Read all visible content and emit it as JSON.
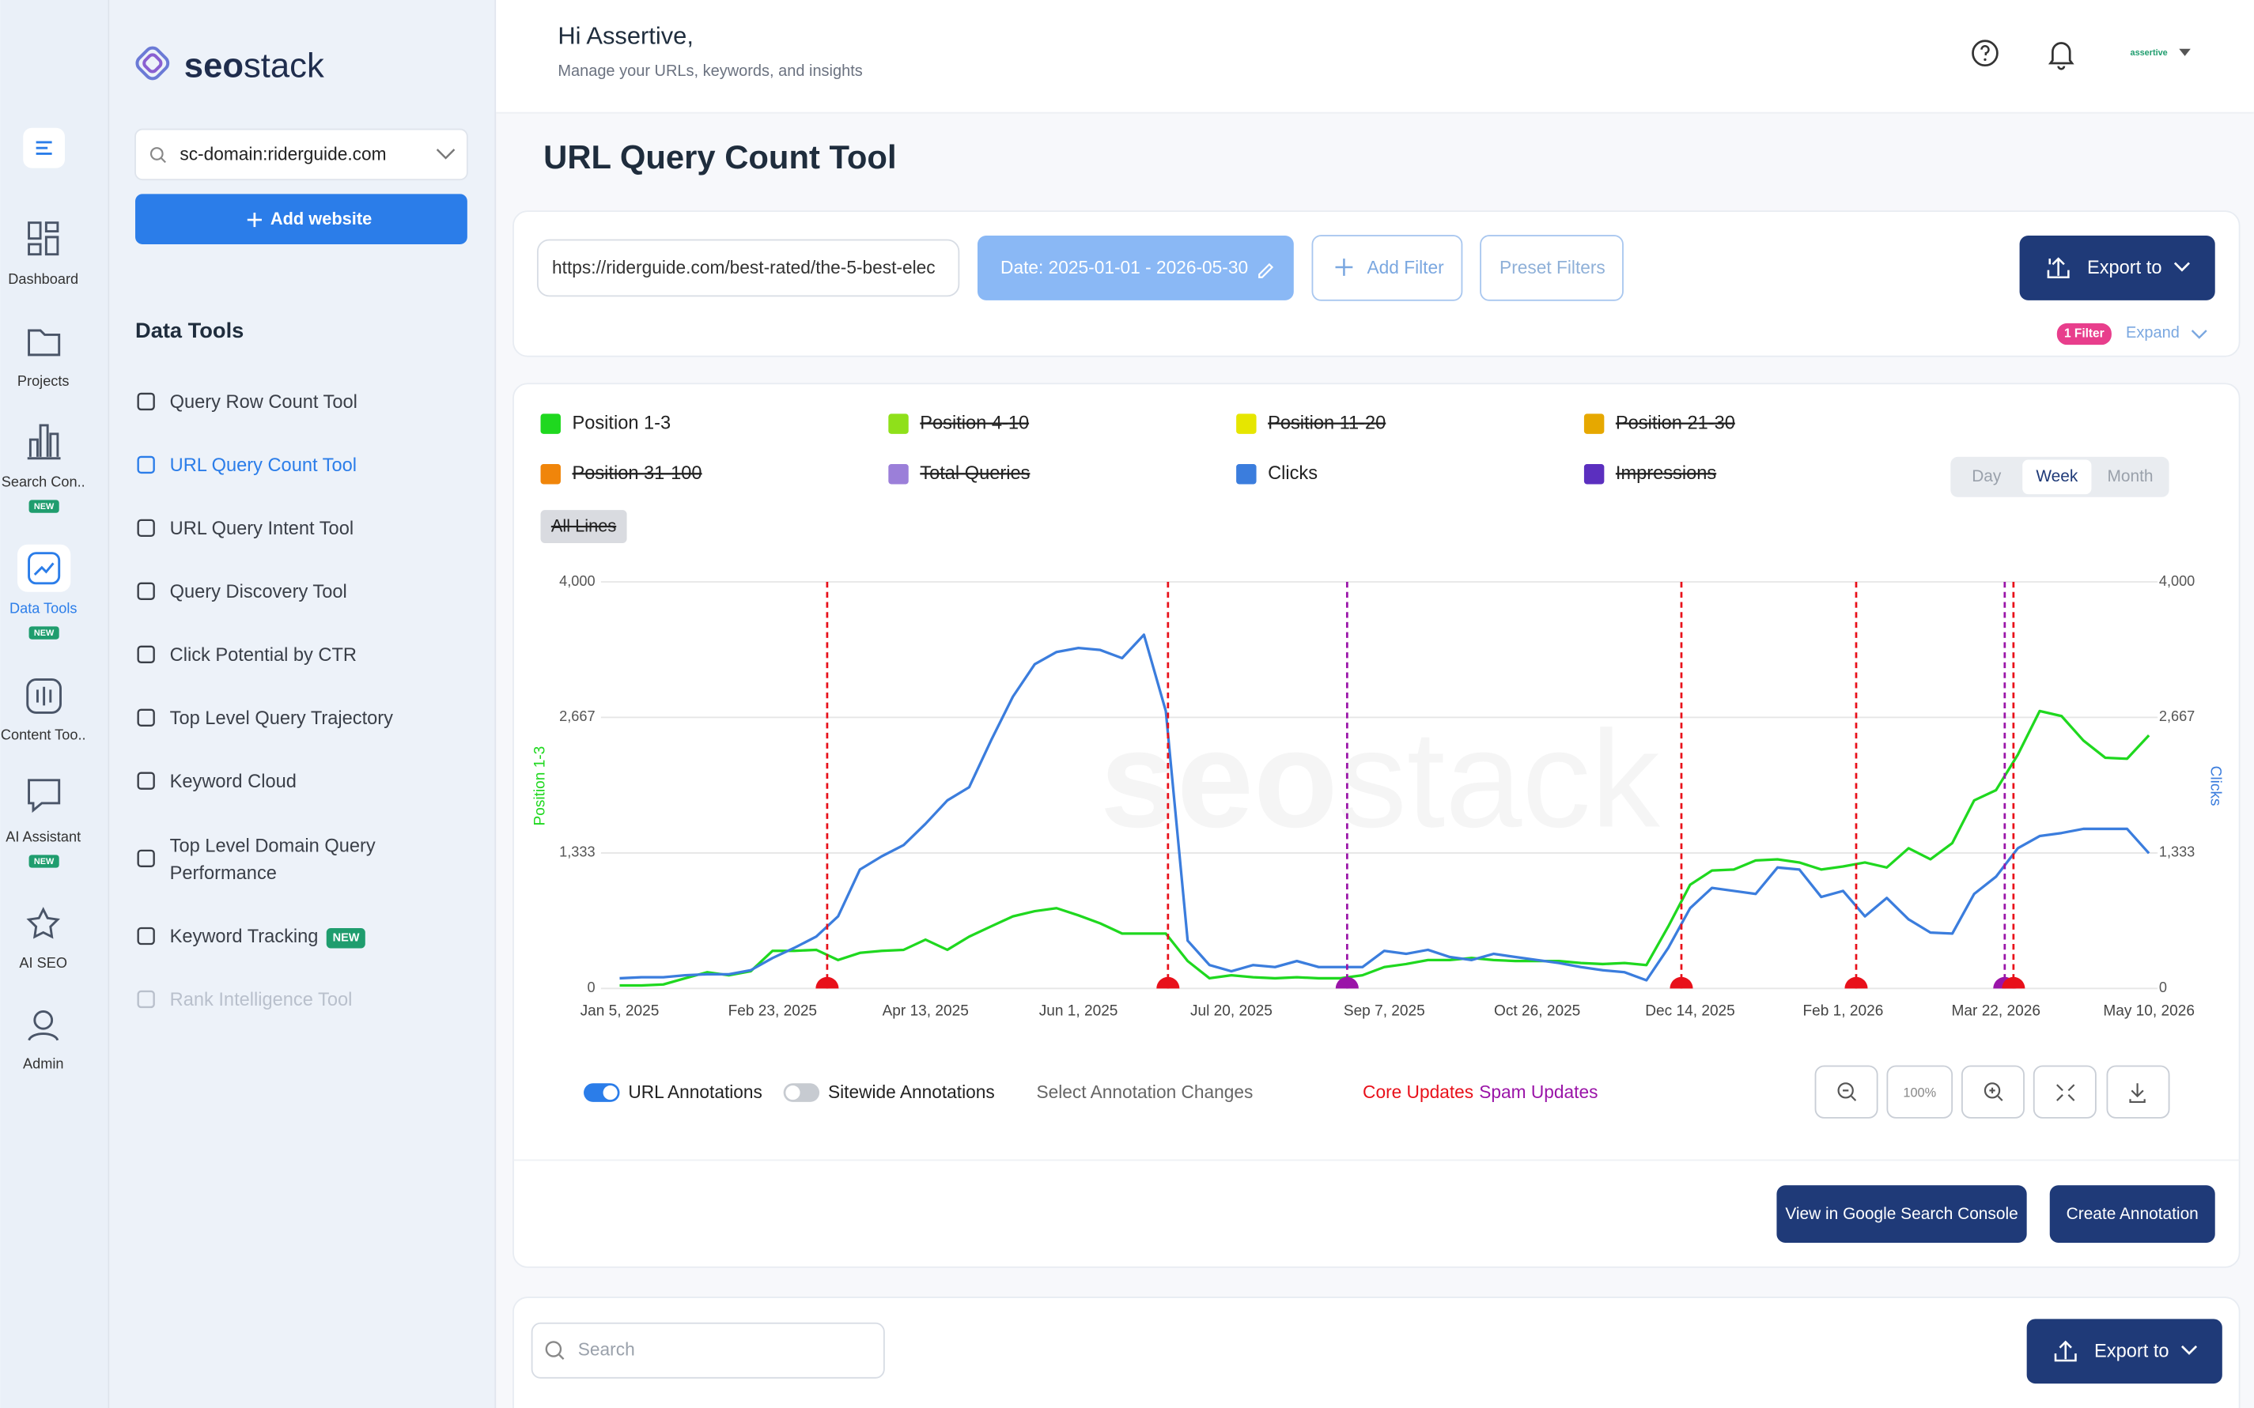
{
  "brand": [
    "seo",
    "stack"
  ],
  "rail": [
    {
      "label": "Dashboard"
    },
    {
      "label": "Projects"
    },
    {
      "label": "Search Con..",
      "badge": "NEW"
    },
    {
      "label": "Data Tools",
      "badge": "NEW",
      "active": true
    },
    {
      "label": "Content Too.."
    },
    {
      "label": "AI Assistant",
      "badge": "NEW"
    },
    {
      "label": "AI SEO"
    },
    {
      "label": "Admin"
    }
  ],
  "site_select": "sc-domain:riderguide.com",
  "add_website": "Add website",
  "section_title": "Data Tools",
  "tools": [
    {
      "label": "Query Row Count Tool"
    },
    {
      "label": "URL Query Count Tool",
      "active": true
    },
    {
      "label": "URL Query Intent Tool"
    },
    {
      "label": "Query Discovery Tool"
    },
    {
      "label": "Click Potential by CTR"
    },
    {
      "label": "Top Level Query Trajectory"
    },
    {
      "label": "Keyword Cloud"
    },
    {
      "label": "Top Level Domain Query Performance"
    },
    {
      "label": "Keyword Tracking",
      "badge": "NEW"
    },
    {
      "label": "Rank Intelligence Tool",
      "disabled": true
    }
  ],
  "header": {
    "greeting": "Hi Assertive,",
    "subtitle": "Manage your URLs, keywords, and insights",
    "user": "assertive"
  },
  "page_title": "URL Query Count Tool",
  "filters": {
    "url": "https://riderguide.com/best-rated/the-5-best-elec",
    "date": "Date: 2025-01-01 - 2026-05-30",
    "add_filter": "Add Filter",
    "preset": "Preset Filters",
    "export": "Export to",
    "filter_badge": "1 Filter",
    "expand": "Expand"
  },
  "granularity": {
    "options": [
      "Day",
      "Week",
      "Month"
    ],
    "active": 1
  },
  "all_lines": "All Lines",
  "chart_data": {
    "type": "line",
    "legend": [
      {
        "name": "Position 1-3",
        "color": "#1fd81f",
        "hidden": false
      },
      {
        "name": "Position 4-10",
        "color": "#8fe01a",
        "hidden": true
      },
      {
        "name": "Position 11-20",
        "color": "#e6e600",
        "hidden": true
      },
      {
        "name": "Position 21-30",
        "color": "#e6a800",
        "hidden": true
      },
      {
        "name": "Position 31-100",
        "color": "#f0850a",
        "hidden": true
      },
      {
        "name": "Total Queries",
        "color": "#9b7fd9",
        "hidden": true
      },
      {
        "name": "Clicks",
        "color": "#3b7ddd",
        "hidden": false
      },
      {
        "name": "Impressions",
        "color": "#5b2fbf",
        "hidden": true
      }
    ],
    "categories": [
      "Jan 5, 2025",
      null,
      null,
      null,
      null,
      null,
      null,
      "Feb 23, 2025",
      null,
      null,
      null,
      null,
      null,
      null,
      "Apr 13, 2025",
      null,
      null,
      null,
      null,
      null,
      null,
      "Jun 1, 2025",
      null,
      null,
      null,
      null,
      null,
      null,
      "Jul 20, 2025",
      null,
      null,
      null,
      null,
      null,
      null,
      "Sep 7, 2025",
      null,
      null,
      null,
      null,
      null,
      null,
      "Oct 26, 2025",
      null,
      null,
      null,
      null,
      null,
      null,
      "Dec 14, 2025",
      null,
      null,
      null,
      null,
      null,
      null,
      "Feb 1, 2026",
      null,
      null,
      null,
      null,
      null,
      null,
      "Mar 22, 2026",
      null,
      null,
      null,
      null,
      null,
      null,
      "May 10, 2026"
    ],
    "series": [
      {
        "name": "Position 1-3",
        "color": "#1fd81f",
        "axis": "y",
        "values": [
          30,
          30,
          40,
          100,
          160,
          130,
          170,
          370,
          370,
          380,
          280,
          350,
          370,
          380,
          480,
          380,
          510,
          610,
          710,
          760,
          790,
          720,
          640,
          540,
          540,
          540,
          270,
          100,
          130,
          110,
          100,
          110,
          100,
          100,
          130,
          210,
          240,
          280,
          280,
          300,
          280,
          270,
          270,
          270,
          250,
          240,
          250,
          230,
          610,
          1020,
          1160,
          1170,
          1260,
          1270,
          1240,
          1170,
          1200,
          1240,
          1190,
          1380,
          1270,
          1430,
          1850,
          1950,
          2300,
          2730,
          2680,
          2440,
          2270,
          2260,
          2490
        ]
      },
      {
        "name": "Clicks",
        "color": "#3b7ddd",
        "axis": "y2",
        "values": [
          100,
          110,
          110,
          130,
          140,
          140,
          180,
          300,
          400,
          510,
          710,
          1170,
          1300,
          1410,
          1620,
          1850,
          1980,
          2440,
          2870,
          3190,
          3310,
          3350,
          3330,
          3250,
          3480,
          2730,
          470,
          230,
          170,
          230,
          210,
          270,
          210,
          210,
          210,
          370,
          340,
          380,
          310,
          280,
          340,
          310,
          280,
          250,
          210,
          180,
          160,
          80,
          400,
          790,
          990,
          960,
          930,
          1190,
          1170,
          900,
          960,
          710,
          890,
          680,
          550,
          540,
          930,
          1100,
          1380,
          1500,
          1530,
          1570,
          1570,
          1570,
          1330
        ]
      }
    ],
    "ylim": [
      0,
      4000
    ],
    "yticks": [
      0,
      {
        "value": 1333,
        "label": "1,333"
      },
      {
        "value": 2667,
        "label": "2,667"
      },
      {
        "value": 4000,
        "label": "4,000"
      }
    ],
    "y2lim": [
      0,
      4000
    ],
    "y2ticks": [
      0,
      {
        "value": 1333,
        "label": "1,333"
      },
      {
        "value": 2667,
        "label": "2,667"
      },
      {
        "value": 4000,
        "label": "4,000"
      }
    ],
    "grid": true,
    "annotations": [
      {
        "x": 9.5,
        "color": "#e8101a"
      },
      {
        "x": 25.1,
        "color": "#e8101a"
      },
      {
        "x": 33.3,
        "color": "#9a14a8"
      },
      {
        "x": 48.6,
        "color": "#e8101a"
      },
      {
        "x": 56.6,
        "color": "#e8101a"
      },
      {
        "x": 63.4,
        "color": "#9a14a8"
      },
      {
        "x": 63.8,
        "color": "#e8101a"
      }
    ]
  },
  "toggles": [
    {
      "label": "URL Annotations",
      "on": true
    },
    {
      "label": "Sitewide Annotations",
      "on": false
    }
  ],
  "select_annotation": "Select Annotation Changes",
  "annotation_legend": [
    {
      "label": "Core Updates",
      "color": "#e8101a"
    },
    {
      "label": "Spam Updates",
      "color": "#9a14a8"
    }
  ],
  "zoom_label": "100%",
  "actions": [
    "View in Google Search Console",
    "Create Annotation"
  ],
  "table": {
    "search": "Search",
    "export": "Export to"
  }
}
